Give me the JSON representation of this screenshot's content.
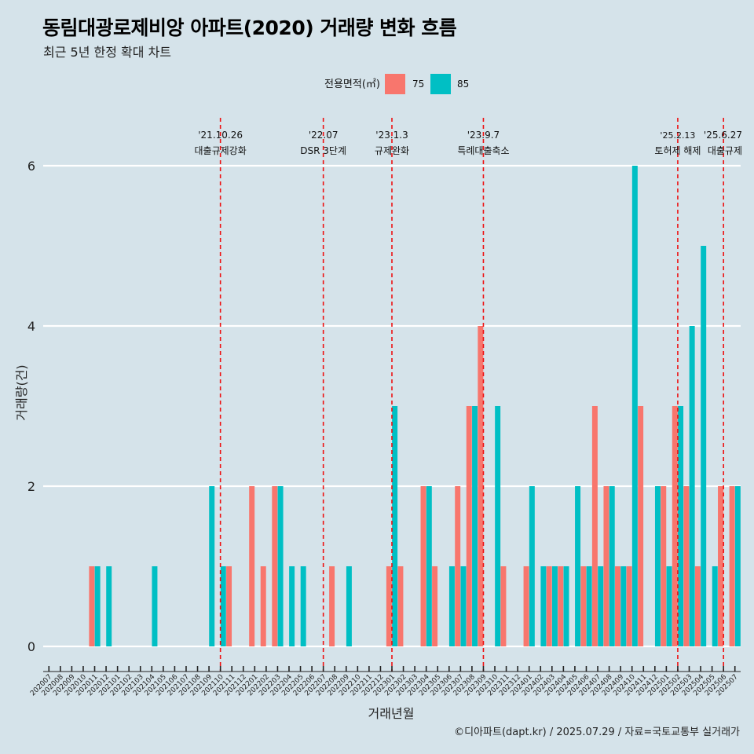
{
  "header": {
    "title": "동림대광로제비앙 아파트(2020) 거래량 변화 흐름",
    "subtitle": "최근 5년 한정 확대 차트"
  },
  "caption": "©디아파트(dapt.kr) / 2025.07.29 / 자료=국토교통부 실거래가",
  "colors": {
    "s75": "#f8766d",
    "s85": "#00bfc4",
    "vline": "#ee1111",
    "grid": "#ffffff",
    "background": "#d5e3ea"
  },
  "chart_data": {
    "type": "bar",
    "title": "동림대광로제비앙 아파트(2020) 거래량 변화 흐름",
    "xlabel": "거래년월",
    "ylabel": "거래량(건)",
    "ylim": [
      0,
      6.4
    ],
    "yticks": [
      0,
      2,
      4,
      6
    ],
    "legend_title": "전용면적(㎡)",
    "legend_position": "top",
    "categories": [
      "202007",
      "202008",
      "202009",
      "202010",
      "202011",
      "202012",
      "202101",
      "202102",
      "202103",
      "202104",
      "202105",
      "202106",
      "202107",
      "202108",
      "202109",
      "202110",
      "202111",
      "202112",
      "202201",
      "202202",
      "202203",
      "202204",
      "202205",
      "202206",
      "202207",
      "202208",
      "202209",
      "202210",
      "202211",
      "202212",
      "202301",
      "202302",
      "202303",
      "202304",
      "202305",
      "202306",
      "202307",
      "202308",
      "202309",
      "202310",
      "202311",
      "202312",
      "202401",
      "202402",
      "202403",
      "202404",
      "202405",
      "202406",
      "202407",
      "202408",
      "202409",
      "202410",
      "202411",
      "202412",
      "202501",
      "202502",
      "202503",
      "202504",
      "202505",
      "202506",
      "202507"
    ],
    "series": [
      {
        "name": "75",
        "values": [
          0,
          0,
          0,
          0,
          1,
          0,
          0,
          0,
          0,
          0,
          0,
          0,
          0,
          0,
          0,
          0,
          1,
          0,
          2,
          1,
          2,
          0,
          0,
          0,
          0,
          1,
          0,
          0,
          0,
          0,
          1,
          1,
          0,
          2,
          1,
          0,
          2,
          3,
          4,
          0,
          1,
          0,
          1,
          0,
          1,
          1,
          0,
          1,
          3,
          2,
          1,
          1,
          3,
          0,
          2,
          3,
          2,
          1,
          0,
          2,
          2
        ]
      },
      {
        "name": "85",
        "values": [
          0,
          0,
          0,
          0,
          1,
          1,
          0,
          0,
          0,
          1,
          0,
          0,
          0,
          0,
          2,
          1,
          0,
          0,
          0,
          0,
          2,
          1,
          1,
          0,
          0,
          0,
          1,
          0,
          0,
          0,
          3,
          0,
          0,
          2,
          0,
          1,
          1,
          3,
          0,
          3,
          0,
          0,
          2,
          1,
          1,
          1,
          2,
          1,
          1,
          2,
          1,
          6,
          0,
          2,
          1,
          3,
          4,
          5,
          1,
          0,
          2
        ]
      }
    ],
    "events": [
      {
        "date": "'21.10.26",
        "label": "대출규제강화",
        "month": "202110"
      },
      {
        "date": "'22.07",
        "label": "DSR 3단계",
        "month": "202207"
      },
      {
        "date": "'23.1.3",
        "label": "규제완화",
        "month": "202301"
      },
      {
        "date": "'23.9.7",
        "label": "특례대출축소",
        "month": "202309"
      },
      {
        "date": "'25.2.13",
        "label": "토허제 해제",
        "month": "202502"
      },
      {
        "date": "'25.6.27",
        "label": "대출규제",
        "month": "202506"
      }
    ]
  }
}
